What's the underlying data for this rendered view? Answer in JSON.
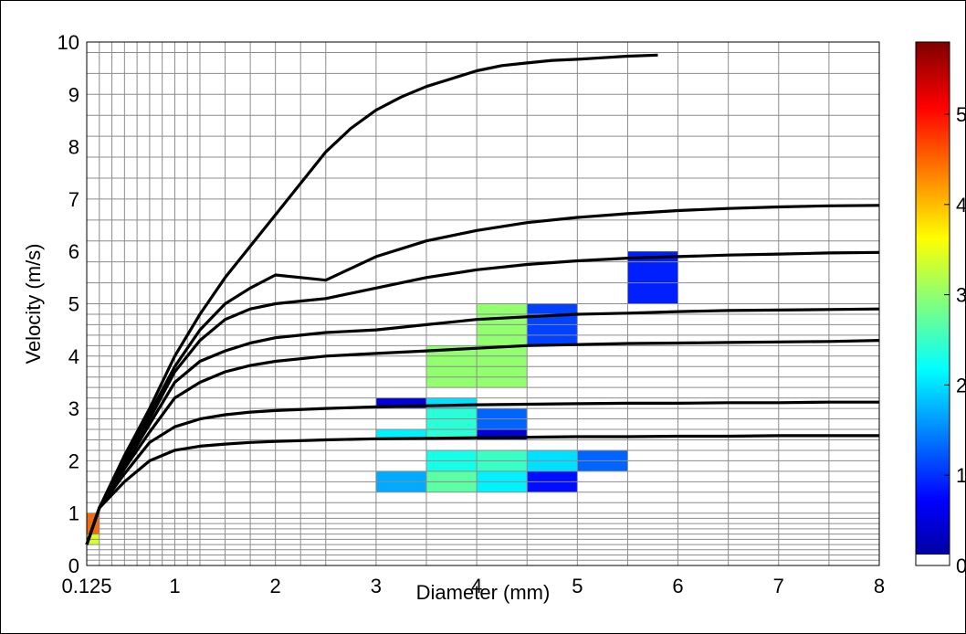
{
  "chart_data": {
    "type": "heatmap",
    "xlabel": "Diameter (mm)",
    "ylabel": "Velocity (m/s)",
    "xlim": [
      0.125,
      8
    ],
    "ylim": [
      0,
      10
    ],
    "x_tick_values": [
      0.125,
      1,
      2,
      3,
      4,
      5,
      6,
      7,
      8
    ],
    "x_tick_labels": [
      "0.125",
      "1",
      "2",
      "3",
      "4",
      "5",
      "6",
      "7",
      "8"
    ],
    "y_tick_values": [
      0,
      1,
      2,
      3,
      4,
      5,
      6,
      7,
      8,
      9,
      10
    ],
    "y_tick_labels": [
      "0",
      "1",
      "2",
      "3",
      "4",
      "5",
      "6",
      "7",
      "8",
      "9",
      "10"
    ],
    "grid": true,
    "x_grid_edges": [
      0.125,
      0.25,
      0.375,
      0.5,
      0.625,
      0.75,
      0.875,
      1.0,
      1.125,
      1.25,
      1.5,
      1.75,
      2.0,
      2.25,
      2.5,
      3.0,
      3.5,
      4.0,
      4.5,
      5.0,
      5.5,
      6.0,
      6.5,
      7.0,
      7.5,
      8.0
    ],
    "y_grid_edges": [
      0,
      0.1,
      0.2,
      0.3,
      0.4,
      0.5,
      0.6,
      0.7,
      0.8,
      0.9,
      1.0,
      1.2,
      1.4,
      1.6,
      1.8,
      2.0,
      2.2,
      2.4,
      2.6,
      2.8,
      3.0,
      3.2,
      3.4,
      3.6,
      3.8,
      4.0,
      4.2,
      4.4,
      4.6,
      4.8,
      5.0,
      5.4,
      5.8,
      6.2,
      6.6,
      7.0,
      7.4,
      7.8,
      8.2,
      8.6,
      9.0,
      9.4,
      9.8,
      10.0
    ],
    "colorbar": {
      "range": [
        0,
        5.8
      ],
      "tick_values": [
        0,
        1,
        2,
        3,
        4,
        5
      ],
      "tick_labels": [
        "0",
        "1",
        "2",
        "3",
        "4",
        "5"
      ],
      "colormap": "jet",
      "zero_color": "#ffffff"
    },
    "cells": [
      {
        "x0": 0.125,
        "x1": 0.25,
        "y0": 0.6,
        "y1": 1.0,
        "value": 4.5
      },
      {
        "x0": 0.125,
        "x1": 0.25,
        "y0": 0.4,
        "y1": 0.6,
        "value": 3.4
      },
      {
        "x0": 3.0,
        "x1": 3.5,
        "y0": 3.0,
        "y1": 3.2,
        "value": 0.5
      },
      {
        "x0": 3.5,
        "x1": 4.0,
        "y0": 3.0,
        "y1": 3.2,
        "value": 2.0
      },
      {
        "x0": 3.5,
        "x1": 4.0,
        "y0": 2.4,
        "y1": 3.0,
        "value": 2.4
      },
      {
        "x0": 3.0,
        "x1": 3.5,
        "y0": 2.4,
        "y1": 2.6,
        "value": 2.1
      },
      {
        "x0": 4.0,
        "x1": 4.5,
        "y0": 2.6,
        "y1": 3.0,
        "value": 1.3
      },
      {
        "x0": 4.0,
        "x1": 4.5,
        "y0": 2.4,
        "y1": 2.6,
        "value": 0.5
      },
      {
        "x0": 3.5,
        "x1": 4.0,
        "y0": 1.8,
        "y1": 2.2,
        "value": 2.3
      },
      {
        "x0": 4.0,
        "x1": 4.5,
        "y0": 1.8,
        "y1": 2.2,
        "value": 2.5
      },
      {
        "x0": 4.5,
        "x1": 5.0,
        "y0": 1.8,
        "y1": 2.2,
        "value": 2.0
      },
      {
        "x0": 5.0,
        "x1": 5.5,
        "y0": 1.8,
        "y1": 2.2,
        "value": 1.3
      },
      {
        "x0": 3.0,
        "x1": 3.5,
        "y0": 1.4,
        "y1": 1.8,
        "value": 1.7
      },
      {
        "x0": 3.5,
        "x1": 4.0,
        "y0": 1.4,
        "y1": 1.8,
        "value": 2.7
      },
      {
        "x0": 4.0,
        "x1": 4.5,
        "y0": 1.4,
        "y1": 1.8,
        "value": 2.1
      },
      {
        "x0": 4.5,
        "x1": 5.0,
        "y0": 1.4,
        "y1": 1.8,
        "value": 0.8
      },
      {
        "x0": 3.5,
        "x1": 4.0,
        "y0": 3.4,
        "y1": 4.2,
        "value": 3.0
      },
      {
        "x0": 4.0,
        "x1": 4.5,
        "y0": 3.4,
        "y1": 5.0,
        "value": 3.0
      },
      {
        "x0": 4.5,
        "x1": 5.0,
        "y0": 4.2,
        "y1": 5.0,
        "value": 1.1
      },
      {
        "x0": 5.5,
        "x1": 6.0,
        "y0": 5.0,
        "y1": 6.0,
        "value": 0.9
      }
    ],
    "curves": [
      {
        "x": [
          0.125,
          0.25,
          0.5,
          0.75,
          1.0,
          1.25,
          1.5,
          1.75,
          2.0,
          2.25,
          2.5,
          2.75,
          3.0,
          3.25,
          3.5,
          3.75,
          4.0,
          4.25,
          4.5,
          4.75,
          5.0,
          5.25,
          5.5,
          5.8
        ],
        "y": [
          0.4,
          1.1,
          2.1,
          3.0,
          4.0,
          4.8,
          5.5,
          6.1,
          6.7,
          7.3,
          7.9,
          8.35,
          8.7,
          8.95,
          9.15,
          9.3,
          9.45,
          9.55,
          9.6,
          9.65,
          9.67,
          9.7,
          9.73,
          9.75
        ]
      },
      {
        "x": [
          0.125,
          0.25,
          0.5,
          0.75,
          1.0,
          1.25,
          1.5,
          1.75,
          2.0,
          2.25,
          2.5,
          3.0,
          3.5,
          4.0,
          4.5,
          5.0,
          5.5,
          6.0,
          6.5,
          7.0,
          7.5,
          8.0
        ],
        "y": [
          0.4,
          1.1,
          2.0,
          2.9,
          3.8,
          4.5,
          5.0,
          5.3,
          5.55,
          5.5,
          5.45,
          5.9,
          6.2,
          6.4,
          6.55,
          6.65,
          6.72,
          6.78,
          6.82,
          6.85,
          6.87,
          6.88
        ]
      },
      {
        "x": [
          0.125,
          0.25,
          0.5,
          0.75,
          1.0,
          1.25,
          1.5,
          1.75,
          2.0,
          2.25,
          2.5,
          3.0,
          3.5,
          4.0,
          4.5,
          5.0,
          5.5,
          6.0,
          6.5,
          7.0,
          7.5,
          8.0
        ],
        "y": [
          0.4,
          1.1,
          1.9,
          2.8,
          3.7,
          4.3,
          4.7,
          4.9,
          5.0,
          5.05,
          5.1,
          5.3,
          5.5,
          5.65,
          5.75,
          5.82,
          5.87,
          5.9,
          5.93,
          5.95,
          5.97,
          5.98
        ]
      },
      {
        "x": [
          0.125,
          0.25,
          0.5,
          0.75,
          1.0,
          1.25,
          1.5,
          1.75,
          2.0,
          2.25,
          2.5,
          3.0,
          3.5,
          4.0,
          4.5,
          5.0,
          5.5,
          6.0,
          6.5,
          7.0,
          7.5,
          8.0
        ],
        "y": [
          0.4,
          1.1,
          1.9,
          2.7,
          3.5,
          3.9,
          4.1,
          4.25,
          4.35,
          4.4,
          4.45,
          4.5,
          4.6,
          4.7,
          4.75,
          4.8,
          4.82,
          4.85,
          4.87,
          4.88,
          4.89,
          4.9
        ]
      },
      {
        "x": [
          0.125,
          0.25,
          0.5,
          0.75,
          1.0,
          1.25,
          1.5,
          1.75,
          2.0,
          2.25,
          2.5,
          3.0,
          3.5,
          4.0,
          4.5,
          5.0,
          5.5,
          6.0,
          6.5,
          7.0,
          7.5,
          8.0
        ],
        "y": [
          0.4,
          1.1,
          1.85,
          2.55,
          3.2,
          3.5,
          3.7,
          3.82,
          3.9,
          3.95,
          4.0,
          4.05,
          4.1,
          4.15,
          4.2,
          4.22,
          4.24,
          4.25,
          4.26,
          4.27,
          4.28,
          4.3
        ]
      },
      {
        "x": [
          0.125,
          0.25,
          0.5,
          0.75,
          1.0,
          1.25,
          1.5,
          1.75,
          2.0,
          2.5,
          3.0,
          3.5,
          4.0,
          4.5,
          5.0,
          5.5,
          6.0,
          6.5,
          7.0,
          7.5,
          8.0
        ],
        "y": [
          0.4,
          1.1,
          1.75,
          2.35,
          2.65,
          2.8,
          2.88,
          2.93,
          2.96,
          3.0,
          3.03,
          3.05,
          3.07,
          3.08,
          3.09,
          3.1,
          3.1,
          3.11,
          3.11,
          3.12,
          3.12
        ]
      },
      {
        "x": [
          0.125,
          0.25,
          0.5,
          0.75,
          1.0,
          1.25,
          1.5,
          1.75,
          2.0,
          2.5,
          3.0,
          3.5,
          4.0,
          4.5,
          5.0,
          5.5,
          6.0,
          6.5,
          7.0,
          7.5,
          8.0
        ],
        "y": [
          0.4,
          1.1,
          1.6,
          2.0,
          2.2,
          2.28,
          2.32,
          2.35,
          2.37,
          2.4,
          2.42,
          2.43,
          2.44,
          2.45,
          2.46,
          2.46,
          2.47,
          2.47,
          2.48,
          2.48,
          2.48
        ]
      }
    ]
  }
}
